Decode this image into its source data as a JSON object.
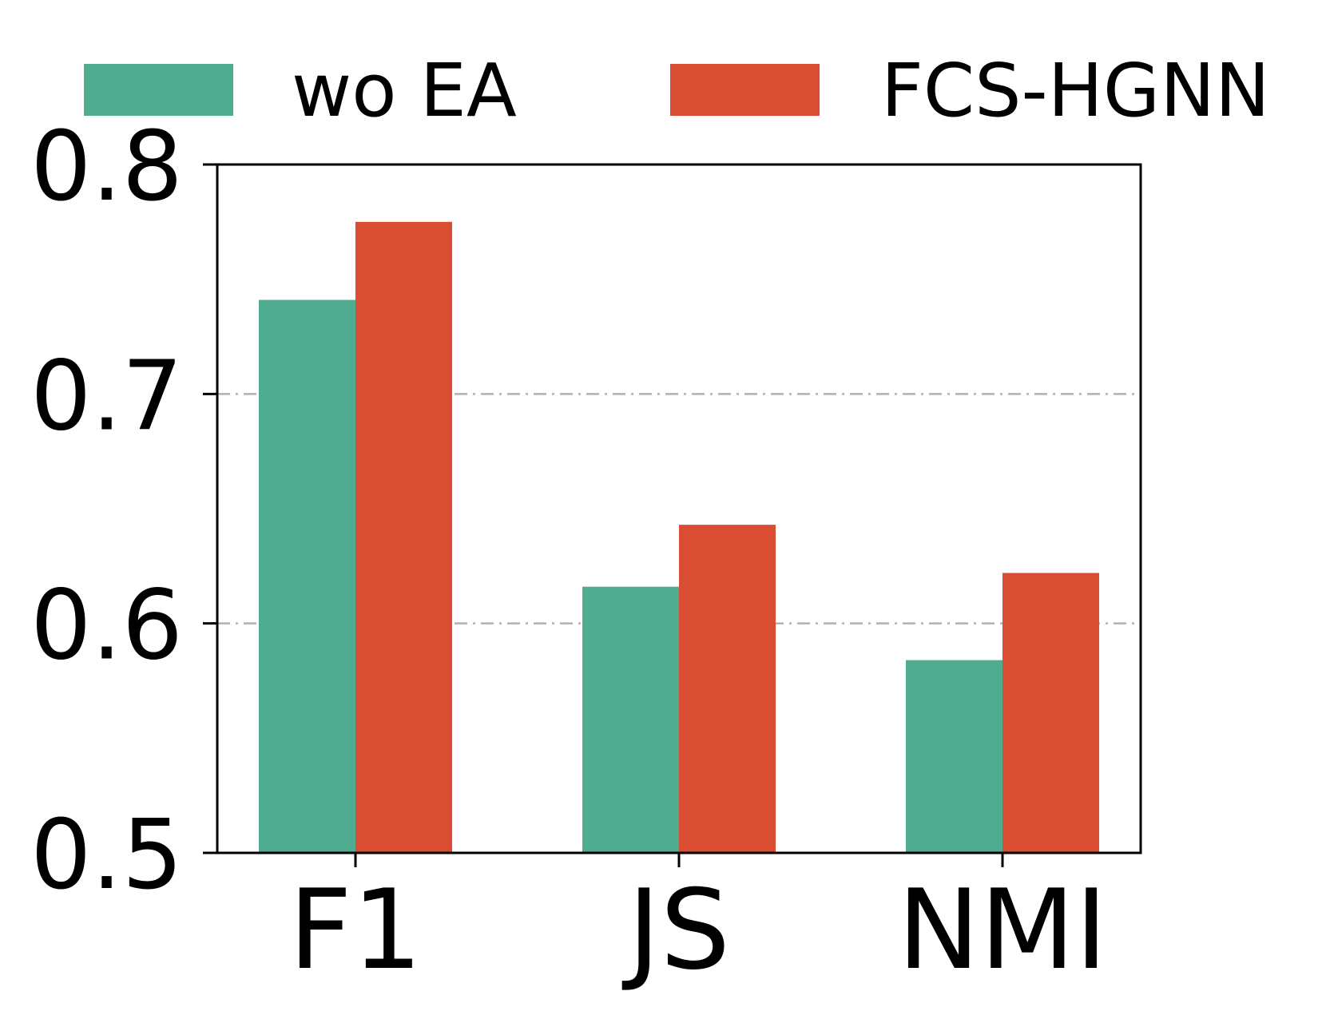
{
  "chart_data": {
    "type": "bar",
    "categories": [
      "F1",
      "JS",
      "NMI"
    ],
    "series": [
      {
        "name": "wo EA",
        "color": "#4fac91",
        "values": [
          0.741,
          0.616,
          0.584
        ]
      },
      {
        "name": "FCS-HGNN",
        "color": "#d94d33",
        "values": [
          0.775,
          0.643,
          0.622
        ]
      }
    ],
    "ylim": [
      0.5,
      0.8
    ],
    "yticks": [
      "0.5",
      "0.6",
      "0.7",
      "0.8"
    ],
    "ytick_values": [
      0.5,
      0.6,
      0.7,
      0.8
    ],
    "grid": "horizontal dash-dot",
    "grid_color": "#b0b0b0",
    "legend": "top",
    "xlabel": "",
    "ylabel": "",
    "title": ""
  }
}
